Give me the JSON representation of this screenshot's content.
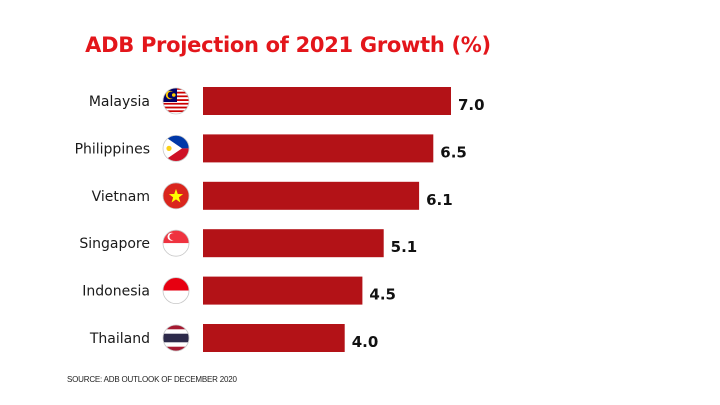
{
  "colors": {
    "title": "#e3161b",
    "bar": "#b31217",
    "background": "#ffffff"
  },
  "chart_data": {
    "type": "bar",
    "orientation": "horizontal",
    "title": "ADB Projection of 2021 Growth (%)",
    "categories": [
      "Malaysia",
      "Philippines",
      "Vietnam",
      "Singapore",
      "Indonesia",
      "Thailand"
    ],
    "values": [
      7.0,
      6.5,
      6.1,
      5.1,
      4.5,
      4.0
    ],
    "value_labels": [
      "7.0",
      "6.5",
      "6.1",
      "5.1",
      "4.5",
      "4.0"
    ],
    "flags": [
      "malaysia-flag-icon",
      "philippines-flag-icon",
      "vietnam-flag-icon",
      "singapore-flag-icon",
      "indonesia-flag-icon",
      "thailand-flag-icon"
    ],
    "xlim": [
      0,
      7.0
    ],
    "grid": false,
    "legend": "none"
  },
  "source": "SOURCE: ADB OUTLOOK OF DECEMBER 2020"
}
